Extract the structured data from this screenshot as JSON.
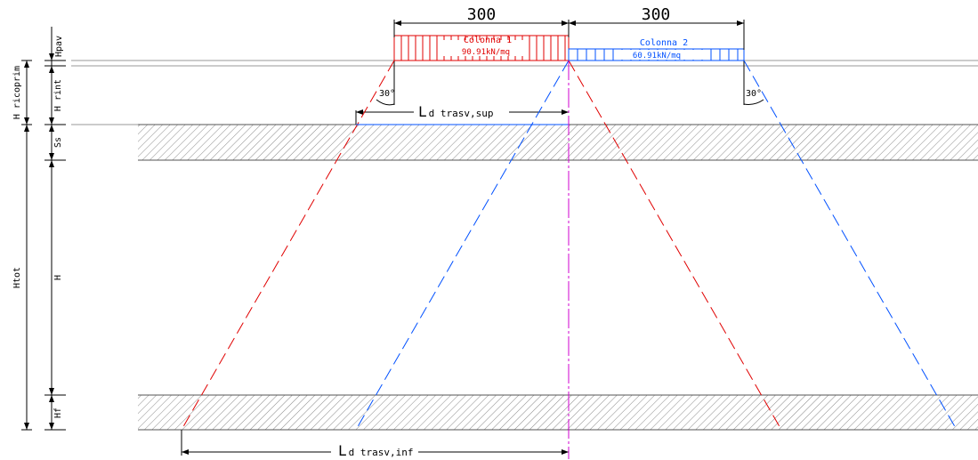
{
  "dimensions": {
    "col1_width": "300",
    "col2_width": "300"
  },
  "columns": [
    {
      "name": "Colonna 1",
      "load": "90.91kN/mq",
      "color": "#e00000"
    },
    {
      "name": "Colonna 2",
      "load": "60.91kN/mq",
      "color": "#0050ff"
    }
  ],
  "angles": {
    "left": "30°",
    "right": "30°"
  },
  "lengths": {
    "top": {
      "main": "L",
      "sub": "d trasv,sup"
    },
    "bottom": {
      "main": "L",
      "sub": "d trasv,inf"
    }
  },
  "layer_labels": {
    "hpav": "Hpav",
    "h_rint": "H rint",
    "h_ricoprim": "H ricoprim",
    "ss": "Ss",
    "h": "H",
    "hf": "Hf",
    "htot": "Htot"
  },
  "colors": {
    "red": "#e00000",
    "blue": "#0050ff",
    "magenta": "#d000d0",
    "hatch": "#777777"
  }
}
